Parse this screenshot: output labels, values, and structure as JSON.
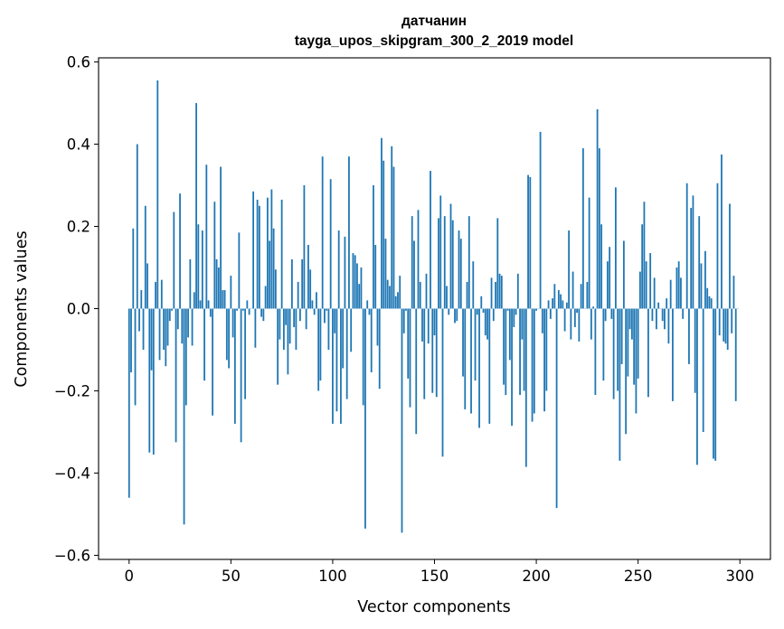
{
  "chart_data": {
    "type": "bar",
    "title_line1": "датчанин",
    "title_line2": "tayga_upos_skipgram_300_2_2019 model",
    "xlabel": "Vector components",
    "ylabel": "Components values",
    "xlim": [
      -15,
      315
    ],
    "ylim": [
      -0.61,
      0.61
    ],
    "x_ticks": [
      {
        "value": 0,
        "label": "0"
      },
      {
        "value": 50,
        "label": "50"
      },
      {
        "value": 100,
        "label": "100"
      },
      {
        "value": 150,
        "label": "150"
      },
      {
        "value": 200,
        "label": "200"
      },
      {
        "value": 250,
        "label": "250"
      },
      {
        "value": 300,
        "label": "300"
      }
    ],
    "y_ticks": [
      {
        "value": 0.6,
        "label": "0.6"
      },
      {
        "value": 0.4,
        "label": "0.4"
      },
      {
        "value": 0.2,
        "label": "0.2"
      },
      {
        "value": 0.0,
        "label": "0.0"
      },
      {
        "value": -0.2,
        "label": "−0.2"
      },
      {
        "value": -0.4,
        "label": "−0.4"
      },
      {
        "value": -0.6,
        "label": "−0.6"
      }
    ],
    "bar_color": "#1f77b4",
    "grid": false,
    "values": [
      -0.46,
      -0.155,
      0.195,
      -0.235,
      0.4,
      -0.055,
      0.045,
      -0.1,
      0.25,
      0.11,
      -0.35,
      -0.15,
      -0.355,
      0.065,
      0.555,
      -0.125,
      0.07,
      -0.1,
      -0.14,
      -0.09,
      -0.03,
      -0.005,
      0.235,
      -0.325,
      -0.05,
      0.28,
      -0.085,
      -0.525,
      -0.235,
      -0.07,
      0.12,
      -0.09,
      0.04,
      0.5,
      0.205,
      0.02,
      0.19,
      -0.175,
      0.35,
      0.02,
      -0.02,
      -0.26,
      0.26,
      0.12,
      0.1,
      0.345,
      0.045,
      0.045,
      -0.125,
      -0.145,
      0.08,
      -0.07,
      -0.28,
      -0.005,
      0.185,
      -0.325,
      -0.005,
      -0.22,
      0.02,
      -0.015,
      0.0,
      0.285,
      -0.095,
      0.265,
      0.25,
      -0.02,
      -0.03,
      0.055,
      0.27,
      0.165,
      0.29,
      0.195,
      0.095,
      -0.185,
      -0.075,
      0.265,
      -0.1,
      -0.04,
      -0.16,
      -0.085,
      0.12,
      -0.045,
      -0.1,
      0.065,
      -0.03,
      0.12,
      0.3,
      -0.05,
      0.155,
      0.095,
      0.02,
      -0.015,
      0.04,
      -0.2,
      -0.175,
      0.37,
      -0.035,
      -0.005,
      -0.1,
      0.315,
      -0.28,
      -0.06,
      -0.25,
      0.19,
      -0.28,
      -0.145,
      0.175,
      -0.22,
      0.37,
      -0.105,
      0.135,
      0.13,
      0.11,
      0.06,
      0.1,
      -0.235,
      -0.535,
      0.02,
      -0.015,
      -0.155,
      0.3,
      0.155,
      -0.09,
      -0.195,
      0.415,
      0.36,
      0.17,
      0.07,
      0.055,
      0.395,
      0.345,
      0.03,
      0.04,
      0.08,
      -0.545,
      -0.06,
      -0.005,
      -0.17,
      -0.24,
      0.225,
      0.165,
      -0.305,
      0.24,
      0.065,
      -0.08,
      -0.22,
      0.085,
      -0.085,
      0.335,
      -0.205,
      -0.065,
      -0.215,
      0.22,
      0.275,
      -0.36,
      0.225,
      0.055,
      -0.015,
      0.255,
      0.215,
      -0.035,
      -0.03,
      0.19,
      0.17,
      -0.165,
      -0.245,
      0.065,
      0.225,
      -0.255,
      0.115,
      -0.175,
      -0.015,
      -0.29,
      0.03,
      -0.01,
      -0.065,
      -0.075,
      -0.28,
      0.075,
      -0.03,
      0.065,
      0.22,
      0.085,
      0.08,
      -0.185,
      -0.21,
      -0.005,
      -0.125,
      -0.285,
      -0.045,
      -0.015,
      0.085,
      -0.21,
      -0.075,
      -0.2,
      -0.385,
      0.325,
      0.32,
      -0.275,
      -0.255,
      -0.005,
      0.0,
      0.43,
      -0.06,
      -0.25,
      -0.2,
      0.02,
      -0.025,
      0.025,
      0.06,
      -0.485,
      0.045,
      0.035,
      0.02,
      -0.055,
      0.015,
      0.19,
      -0.075,
      0.09,
      -0.045,
      -0.01,
      -0.08,
      0.06,
      0.39,
      0.0,
      0.065,
      0.27,
      -0.075,
      0.005,
      -0.21,
      0.485,
      0.39,
      0.205,
      -0.175,
      -0.03,
      0.115,
      0.15,
      -0.025,
      -0.22,
      0.295,
      -0.2,
      -0.37,
      -0.135,
      0.165,
      -0.305,
      -0.165,
      -0.05,
      -0.075,
      -0.185,
      -0.255,
      -0.17,
      0.09,
      0.205,
      0.26,
      0.115,
      -0.215,
      0.135,
      -0.03,
      0.075,
      -0.05,
      0.015,
      0.0,
      -0.03,
      -0.05,
      0.025,
      -0.085,
      0.07,
      -0.225,
      0.0,
      0.1,
      0.115,
      0.075,
      -0.025,
      0.0,
      0.305,
      -0.135,
      0.245,
      0.275,
      -0.205,
      -0.38,
      0.225,
      0.11,
      -0.3,
      0.14,
      0.05,
      0.03,
      0.025,
      -0.365,
      -0.37,
      0.305,
      -0.065,
      0.375,
      -0.08,
      -0.085,
      -0.1,
      0.255,
      -0.06,
      0.08,
      -0.225,
      0.0
    ]
  }
}
